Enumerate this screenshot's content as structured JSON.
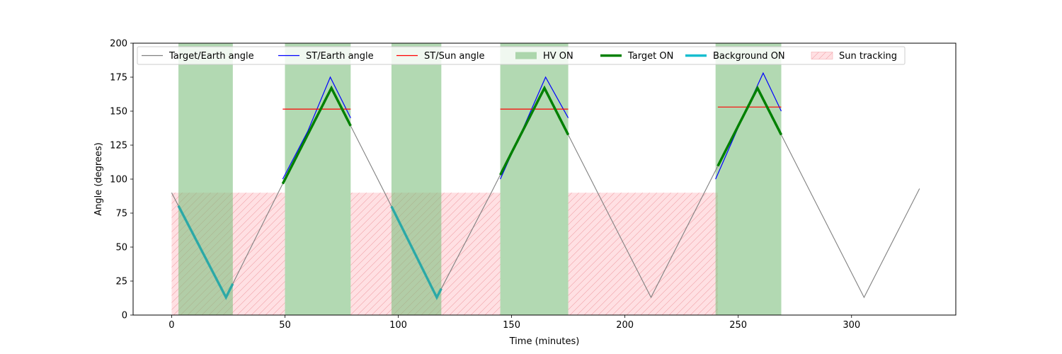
{
  "chart_data": {
    "type": "line",
    "title": "",
    "xlabel": "Time (minutes)",
    "ylabel": "Angle (degrees)",
    "xlim": [
      -17,
      346
    ],
    "ylim": [
      0,
      200
    ],
    "x_ticks": [
      0,
      50,
      100,
      150,
      200,
      250,
      300
    ],
    "y_ticks": [
      0,
      25,
      50,
      75,
      100,
      125,
      150,
      175,
      200
    ],
    "grid": false,
    "legend_position": "top",
    "legend": [
      {
        "label": "Target/Earth angle",
        "type": "line",
        "color": "#808080"
      },
      {
        "label": "ST/Earth angle",
        "type": "line",
        "color": "#0000ff"
      },
      {
        "label": "ST/Sun angle",
        "type": "line",
        "color": "#ff0000"
      },
      {
        "label": "HV ON",
        "type": "patch",
        "color": "#7fbf7f"
      },
      {
        "label": "Target ON",
        "type": "thickline",
        "color": "#008000"
      },
      {
        "label": "Background ON",
        "type": "thickline",
        "color": "#17becf"
      },
      {
        "label": "Sun tracking",
        "type": "hatch",
        "color": "#ffb6bc"
      }
    ],
    "target_earth_angle": {
      "color": "#808080",
      "x": [
        0,
        24,
        47,
        70.5,
        94,
        117,
        141,
        164.5,
        188,
        211.5,
        235,
        258.5,
        282,
        305.5,
        330
      ],
      "y": [
        90,
        13,
        90,
        167,
        90,
        13,
        90,
        167,
        90,
        13,
        90,
        167,
        90,
        13,
        93
      ]
    },
    "st_earth_angle": {
      "color": "#0000ff",
      "segments": [
        {
          "x": [
            49,
            60,
            70,
            79
          ],
          "y": [
            100,
            135,
            175,
            145
          ]
        },
        {
          "x": [
            145,
            155,
            165,
            175
          ],
          "y": [
            100,
            137,
            175,
            145
          ]
        },
        {
          "x": [
            240,
            250,
            261,
            269
          ],
          "y": [
            100,
            138,
            178,
            150
          ]
        }
      ]
    },
    "st_sun_angle": {
      "color": "#ff0000",
      "segments": [
        {
          "x": [
            49,
            79
          ],
          "y": [
            151.5,
            151.5
          ]
        },
        {
          "x": [
            145,
            175
          ],
          "y": [
            151.5,
            151.5
          ]
        },
        {
          "x": [
            241,
            269
          ],
          "y": [
            153,
            153
          ]
        }
      ]
    },
    "hv_on": {
      "color": "#7fbf7f",
      "intervals": [
        [
          3,
          27
        ],
        [
          50,
          79
        ],
        [
          97,
          119
        ],
        [
          145,
          175
        ],
        [
          240,
          269
        ]
      ]
    },
    "target_on": {
      "color": "#008000",
      "intervals": [
        [
          49,
          79
        ],
        [
          145,
          175
        ],
        [
          241,
          269
        ]
      ]
    },
    "background_on": {
      "color": "#20a8a8",
      "intervals": [
        [
          3,
          27
        ],
        [
          97,
          119
        ]
      ]
    },
    "sun_tracking": {
      "color": "#ffb6bc",
      "y_range": [
        0,
        90
      ],
      "intervals": [
        [
          0,
          50
        ],
        [
          79,
          145
        ],
        [
          175,
          241
        ]
      ]
    }
  }
}
